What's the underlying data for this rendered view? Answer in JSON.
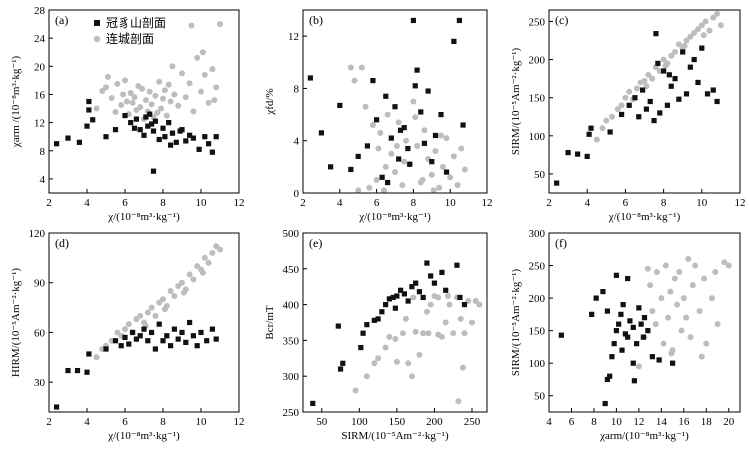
{
  "colors": {
    "black_series": "#111111",
    "gray_series": "#bdbdbd",
    "axis": "#000000"
  },
  "legend": {
    "items": [
      {
        "label": "冠豸山剖面",
        "marker": "square",
        "color": "#111111"
      },
      {
        "label": "连城剖面",
        "marker": "circle",
        "color": "#bdbdbd"
      }
    ]
  },
  "chart_data": [
    {
      "panel": "(a)",
      "type": "scatter",
      "xlabel": "χ/(10⁻⁸m³·kg⁻¹)",
      "ylabel": "χarm /(10⁻⁸m³·kg⁻¹)",
      "xlim": [
        2,
        12
      ],
      "ylim": [
        2,
        28
      ],
      "xticks": [
        2,
        4,
        6,
        8,
        10,
        12
      ],
      "yticks": [
        4,
        8,
        12,
        16,
        20,
        24,
        28
      ],
      "series": [
        {
          "name": "冠豸山剖面",
          "marker": "square",
          "color": "#111111",
          "x": [
            2.4,
            3.0,
            3.6,
            4.0,
            4.1,
            4.1,
            4.3,
            5.0,
            5.5,
            6.0,
            6.3,
            6.5,
            6.6,
            6.8,
            7.0,
            7.1,
            7.2,
            7.3,
            7.4,
            7.5,
            7.6,
            7.8,
            8.0,
            8.1,
            8.3,
            8.4,
            8.5,
            8.7,
            8.9,
            9.0,
            9.2,
            9.4,
            9.6,
            9.9,
            10.2,
            10.4,
            10.6,
            10.8,
            7.5
          ],
          "y": [
            9.0,
            9.8,
            9.2,
            11.5,
            13.8,
            15.0,
            12.4,
            10.0,
            11.0,
            13.0,
            12.0,
            11.2,
            12.5,
            11.0,
            10.2,
            12.8,
            11.5,
            13.2,
            11.8,
            10.8,
            12.2,
            9.6,
            11.2,
            10.0,
            12.0,
            8.8,
            10.5,
            9.2,
            10.8,
            11.0,
            9.4,
            10.2,
            9.8,
            8.2,
            10.0,
            9.0,
            7.8,
            10.0,
            5.1
          ]
        },
        {
          "name": "连城剖面",
          "marker": "circle",
          "color": "#bdbdbd",
          "x": [
            4.5,
            4.8,
            5.0,
            5.1,
            5.3,
            5.5,
            5.6,
            5.8,
            5.9,
            6.0,
            6.1,
            6.2,
            6.3,
            6.4,
            6.5,
            6.6,
            6.7,
            6.8,
            6.9,
            7.0,
            7.1,
            7.2,
            7.3,
            7.4,
            7.5,
            7.6,
            7.7,
            7.8,
            7.9,
            8.0,
            8.1,
            8.2,
            8.3,
            8.4,
            8.5,
            8.6,
            8.8,
            9.0,
            9.2,
            9.4,
            9.6,
            9.8,
            10.0,
            10.2,
            10.4,
            10.6,
            10.8,
            11.0,
            9.5,
            10.1,
            10.7
          ],
          "y": [
            14.0,
            16.5,
            17.0,
            18.5,
            15.5,
            13.5,
            17.5,
            14.5,
            16.0,
            18.0,
            15.0,
            13.2,
            16.2,
            14.8,
            15.6,
            13.8,
            17.2,
            14.2,
            16.8,
            12.5,
            15.2,
            13.6,
            16.4,
            14.6,
            12.8,
            15.8,
            13.4,
            17.8,
            14.0,
            15.4,
            16.6,
            13.0,
            17.4,
            15.0,
            20.0,
            16.0,
            14.4,
            19.0,
            15.6,
            17.6,
            13.6,
            21.2,
            16.4,
            18.8,
            14.8,
            19.6,
            17.0,
            26.0,
            25.8,
            22.0,
            15.2
          ]
        }
      ]
    },
    {
      "panel": "(b)",
      "type": "scatter",
      "xlabel": "χ/(10⁻⁸m³·kg⁻¹)",
      "ylabel": "χfd/%",
      "xlim": [
        2,
        12
      ],
      "ylim": [
        0,
        14
      ],
      "xticks": [
        2,
        4,
        6,
        8,
        10,
        12
      ],
      "yticks": [
        0,
        4,
        8,
        12
      ],
      "series": [
        {
          "name": "冠豸山剖面",
          "marker": "square",
          "color": "#111111",
          "x": [
            2.4,
            3.0,
            3.5,
            4.0,
            4.6,
            5.0,
            5.5,
            5.8,
            6.0,
            6.3,
            6.5,
            6.8,
            7.0,
            7.2,
            7.5,
            7.7,
            8.0,
            8.2,
            8.4,
            8.6,
            8.8,
            9.0,
            9.2,
            9.5,
            9.8,
            10.2,
            10.5,
            10.7,
            7.8,
            8.1,
            6.6,
            7.3
          ],
          "y": [
            8.8,
            4.6,
            2.0,
            6.7,
            1.8,
            2.8,
            3.6,
            8.6,
            5.6,
            1.2,
            7.4,
            4.2,
            6.6,
            2.6,
            5.0,
            3.4,
            13.2,
            9.4,
            6.2,
            3.8,
            7.8,
            2.4,
            4.4,
            6.0,
            1.6,
            11.6,
            13.2,
            5.2,
            2.2,
            8.2,
            0.8,
            4.8
          ]
        },
        {
          "name": "连城剖面",
          "marker": "circle",
          "color": "#bdbdbd",
          "x": [
            4.6,
            4.8,
            5.0,
            5.2,
            5.4,
            5.6,
            5.8,
            6.0,
            6.2,
            6.4,
            6.6,
            6.8,
            7.0,
            7.2,
            7.4,
            7.6,
            7.8,
            8.0,
            8.2,
            8.4,
            8.6,
            8.8,
            9.0,
            9.2,
            9.4,
            9.6,
            9.8,
            10.0,
            10.2,
            10.4,
            10.6,
            10.8,
            6.1,
            7.1,
            8.1,
            9.1,
            6.5,
            7.5,
            8.5,
            9.5
          ],
          "y": [
            9.6,
            8.6,
            0.2,
            9.6,
            6.6,
            0.4,
            5.2,
            1.0,
            4.6,
            0.2,
            6.0,
            3.0,
            1.6,
            5.4,
            0.6,
            4.0,
            2.2,
            7.0,
            3.6,
            0.8,
            4.8,
            2.6,
            1.4,
            3.2,
            0.4,
            2.0,
            4.2,
            1.2,
            2.8,
            0.6,
            3.4,
            1.8,
            3.4,
            3.6,
            5.8,
            0.2,
            2.0,
            2.4,
            1.0,
            4.4
          ]
        }
      ]
    },
    {
      "panel": "(c)",
      "type": "scatter",
      "xlabel": "χ/(10⁻⁸m³·kg⁻¹)",
      "ylabel": "SIRM/(10⁻⁵Am⁻²·kg⁻¹)",
      "xlim": [
        2,
        12
      ],
      "ylim": [
        25,
        265
      ],
      "xticks": [
        2,
        4,
        6,
        8,
        10,
        12
      ],
      "yticks": [
        50,
        100,
        150,
        200,
        250
      ],
      "series": [
        {
          "name": "冠豸山剖面",
          "marker": "square",
          "color": "#111111",
          "x": [
            2.4,
            3.0,
            3.5,
            4.0,
            4.1,
            4.2,
            5.2,
            5.8,
            6.2,
            6.5,
            6.7,
            6.9,
            7.1,
            7.3,
            7.5,
            7.6,
            7.8,
            8.0,
            8.2,
            8.4,
            8.6,
            8.8,
            9.0,
            9.2,
            9.4,
            9.6,
            9.8,
            10.0,
            10.3,
            10.6,
            10.8,
            7.7,
            8.3
          ],
          "y": [
            38,
            78,
            76,
            73,
            102,
            110,
            105,
            128,
            140,
            150,
            125,
            160,
            135,
            145,
            120,
            234,
            130,
            185,
            140,
            165,
            175,
            148,
            210,
            155,
            190,
            200,
            170,
            215,
            155,
            160,
            145,
            195,
            180
          ]
        },
        {
          "name": "连城剖面",
          "marker": "circle",
          "color": "#bdbdbd",
          "x": [
            4.5,
            4.8,
            5.0,
            5.3,
            5.6,
            5.8,
            6.0,
            6.2,
            6.4,
            6.6,
            6.8,
            7.0,
            7.2,
            7.4,
            7.6,
            7.8,
            8.0,
            8.2,
            8.4,
            8.6,
            8.8,
            9.0,
            9.2,
            9.4,
            9.6,
            9.8,
            10.0,
            10.2,
            10.4,
            10.6,
            10.8,
            11.0,
            7.1,
            8.1,
            9.1,
            10.1
          ],
          "y": [
            95,
            110,
            120,
            125,
            135,
            140,
            150,
            158,
            148,
            162,
            170,
            172,
            180,
            175,
            190,
            185,
            200,
            195,
            205,
            210,
            220,
            215,
            225,
            230,
            235,
            240,
            245,
            250,
            238,
            255,
            260,
            245,
            165,
            192,
            218,
            232
          ]
        }
      ]
    },
    {
      "panel": "(d)",
      "type": "scatter",
      "xlabel": "χ/(10⁻⁸m³·kg⁻¹)",
      "ylabel": "HIRM/(10⁻⁵Am⁻²·kg⁻¹)",
      "xlim": [
        2,
        12
      ],
      "ylim": [
        12,
        120
      ],
      "xticks": [
        2,
        4,
        6,
        8,
        10,
        12
      ],
      "yticks": [
        30,
        60,
        90,
        120
      ],
      "series": [
        {
          "name": "冠豸山剖面",
          "marker": "square",
          "color": "#111111",
          "x": [
            2.4,
            3.0,
            3.5,
            4.0,
            4.1,
            5.0,
            5.5,
            5.8,
            6.0,
            6.2,
            6.4,
            6.6,
            6.8,
            7.0,
            7.2,
            7.4,
            7.6,
            7.8,
            8.0,
            8.2,
            8.4,
            8.6,
            8.8,
            9.0,
            9.2,
            9.4,
            9.6,
            9.8,
            10.0,
            10.3,
            10.6,
            10.8
          ],
          "y": [
            15,
            37,
            37,
            36,
            47,
            50,
            55,
            52,
            57,
            53,
            60,
            56,
            58,
            62,
            55,
            60,
            50,
            65,
            55,
            58,
            52,
            62,
            56,
            60,
            54,
            66,
            58,
            52,
            60,
            55,
            62,
            56
          ]
        },
        {
          "name": "连城剖面",
          "marker": "circle",
          "color": "#bdbdbd",
          "x": [
            4.5,
            4.8,
            5.0,
            5.3,
            5.6,
            5.8,
            6.0,
            6.2,
            6.4,
            6.6,
            6.8,
            7.0,
            7.2,
            7.4,
            7.6,
            7.8,
            8.0,
            8.2,
            8.4,
            8.6,
            8.8,
            9.0,
            9.2,
            9.4,
            9.6,
            9.8,
            10.0,
            10.2,
            10.4,
            10.6,
            10.8,
            11.0,
            7.1,
            8.1,
            9.1,
            10.1
          ],
          "y": [
            45,
            50,
            52,
            55,
            60,
            58,
            62,
            65,
            60,
            68,
            70,
            66,
            72,
            75,
            70,
            78,
            80,
            76,
            85,
            82,
            88,
            90,
            86,
            95,
            92,
            100,
            98,
            105,
            102,
            108,
            112,
            110,
            64,
            74,
            84,
            96
          ]
        }
      ]
    },
    {
      "panel": "(e)",
      "type": "scatter",
      "xlabel": "SIRM/(10⁻⁵Am⁻²·kg⁻¹)",
      "ylabel": "Bcr/mT",
      "xlim": [
        25,
        270
      ],
      "ylim": [
        250,
        500
      ],
      "xticks": [
        50,
        100,
        150,
        200,
        250
      ],
      "yticks": [
        250,
        300,
        350,
        400,
        450,
        500
      ],
      "series": [
        {
          "name": "冠豸山剖面",
          "marker": "square",
          "color": "#111111",
          "x": [
            38,
            72,
            75,
            78,
            102,
            105,
            110,
            120,
            125,
            130,
            135,
            140,
            145,
            148,
            150,
            155,
            160,
            165,
            170,
            175,
            180,
            185,
            190,
            195,
            200,
            210,
            215,
            230,
            234,
            240
          ],
          "y": [
            262,
            370,
            310,
            318,
            340,
            360,
            372,
            378,
            380,
            390,
            400,
            408,
            410,
            395,
            412,
            420,
            415,
            405,
            425,
            430,
            418,
            410,
            458,
            440,
            430,
            445,
            420,
            455,
            410,
            400
          ]
        },
        {
          "name": "连城剖面",
          "marker": "circle",
          "color": "#bdbdbd",
          "x": [
            95,
            110,
            120,
            125,
            135,
            140,
            150,
            158,
            162,
            170,
            172,
            180,
            185,
            190,
            195,
            200,
            205,
            210,
            215,
            220,
            225,
            230,
            235,
            240,
            245,
            250,
            255,
            260,
            165,
            192,
            218,
            232,
            148,
            175,
            205,
            238
          ],
          "y": [
            280,
            300,
            318,
            325,
            340,
            355,
            320,
            360,
            380,
            300,
            410,
            330,
            360,
            390,
            400,
            412,
            410,
            355,
            375,
            400,
            360,
            410,
            380,
            360,
            405,
            375,
            405,
            400,
            318,
            360,
            412,
            265,
            352,
            362,
            358,
            312
          ]
        }
      ]
    },
    {
      "panel": "(f)",
      "type": "scatter",
      "xlabel": "χarm/(10⁻⁸m³·kg⁻¹)",
      "ylabel": "SIRM/(10⁻⁵Am⁻²·kg⁻¹)",
      "xlim": [
        4,
        21
      ],
      "ylim": [
        25,
        300
      ],
      "xticks": [
        4,
        6,
        8,
        10,
        12,
        14,
        16,
        18,
        20
      ],
      "yticks": [
        50,
        100,
        150,
        200,
        250,
        300
      ],
      "series": [
        {
          "name": "冠豸山剖面",
          "marker": "square",
          "color": "#111111",
          "x": [
            5.1,
            7.8,
            8.2,
            8.8,
            9.0,
            9.2,
            9.4,
            9.6,
            9.8,
            10.0,
            10.0,
            10.2,
            10.4,
            10.5,
            10.8,
            11.0,
            11.0,
            11.2,
            11.5,
            11.5,
            11.8,
            12.0,
            12.2,
            12.4,
            12.5,
            12.8,
            13.2,
            13.8,
            15.0,
            11.6,
            10.6,
            9.2
          ],
          "y": [
            143,
            175,
            200,
            210,
            38,
            75,
            80,
            110,
            130,
            150,
            235,
            160,
            175,
            120,
            145,
            140,
            230,
            165,
            155,
            100,
            130,
            185,
            160,
            140,
            170,
            150,
            110,
            105,
            100,
            73,
            190,
            180
          ]
        },
        {
          "name": "连城剖面",
          "marker": "circle",
          "color": "#bdbdbd",
          "x": [
            12.0,
            12.5,
            13.0,
            13.2,
            13.5,
            13.6,
            14.0,
            14.2,
            14.4,
            14.6,
            14.8,
            15.0,
            15.2,
            15.4,
            15.6,
            15.8,
            16.0,
            16.4,
            16.6,
            16.8,
            17.0,
            17.4,
            17.6,
            17.8,
            18.0,
            18.5,
            18.8,
            19.0,
            19.6,
            20.0,
            12.8,
            14.9,
            16.2
          ],
          "y": [
            95,
            140,
            220,
            180,
            160,
            240,
            200,
            130,
            250,
            170,
            210,
            120,
            230,
            190,
            240,
            150,
            200,
            260,
            140,
            220,
            250,
            180,
            110,
            230,
            130,
            200,
            240,
            160,
            255,
            250,
            245,
            115,
            170
          ]
        }
      ]
    }
  ]
}
